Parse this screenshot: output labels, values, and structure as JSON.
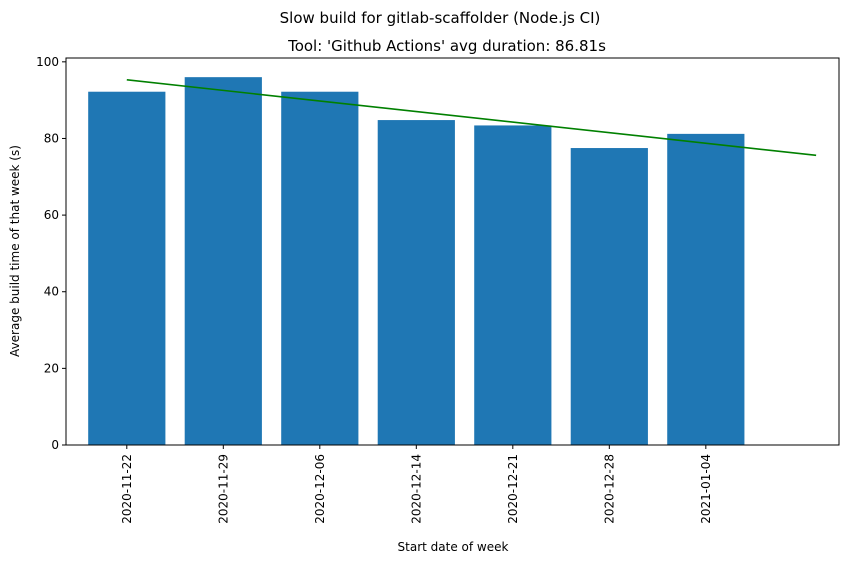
{
  "chart_data": {
    "type": "bar",
    "suptitle": "Slow build for gitlab-scaffolder (Node.js CI)",
    "title": "Tool: 'Github Actions' avg duration: 86.81s",
    "xlabel": "Start date of week",
    "ylabel": "Average build time of that week (s)",
    "categories": [
      "2020-11-22",
      "2020-11-29",
      "2020-12-06",
      "2020-12-14",
      "2020-12-21",
      "2020-12-28",
      "2021-01-04"
    ],
    "values": [
      92.2,
      96.0,
      92.2,
      84.8,
      83.4,
      77.5,
      81.2
    ],
    "ylim": [
      0,
      101
    ],
    "yticks": [
      0,
      20,
      40,
      60,
      80,
      100
    ],
    "bar_color": "#1f77b4",
    "trend": {
      "color": "#008000",
      "x_start": "2020-11-22",
      "x_end": "2021-01-11",
      "y_start": 95.3,
      "y_end": 75.6
    },
    "grid": false
  }
}
